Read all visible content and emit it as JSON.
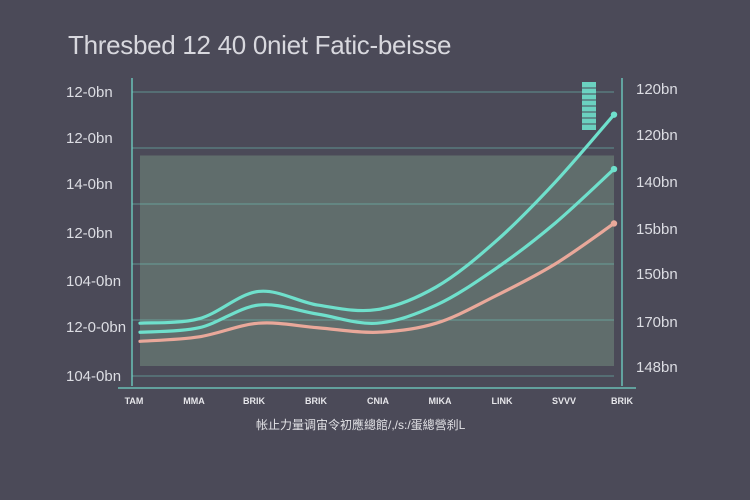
{
  "title": "Thresbed 12 40 0niet Fatic-beisse",
  "caption": "帐止力量调宙令初應總館/,/s:/蛋總營刹L",
  "colors": {
    "background": "#4b4a58",
    "band": "#63716f",
    "grid": "#6fc8bd",
    "axis": "#6fd3c6",
    "series_top": "#6fe0cc",
    "series_mid": "#6fe0cc",
    "series_bottom": "#e9a89a"
  },
  "chart_data": {
    "type": "line",
    "title": "Thresbed 12 40 0niet Fatic-beisse",
    "y_left_ticks": [
      "12-0bn",
      "12-0bn",
      "14-0bn",
      "12-0bn",
      "104-0bn",
      "12-0-0bn",
      "104-0bn"
    ],
    "y_right_ticks": [
      "120bn",
      "120bn",
      "140bn",
      "15bbn",
      "150bn",
      "170bn",
      "148bn"
    ],
    "x_tick_labels": [
      "TAM",
      "MMA",
      "BRIK",
      "BRIK",
      "CNIA",
      "MIKA",
      "LINK",
      "SVVV",
      "BRIK"
    ],
    "x": [
      0,
      1,
      2,
      3,
      4,
      5,
      6,
      7,
      8
    ],
    "ylim": [
      0,
      6
    ],
    "series": [
      {
        "values": [
          0.9,
          1.0,
          1.6,
          1.3,
          1.2,
          1.7,
          2.7,
          4.0,
          5.5
        ]
      },
      {
        "values": [
          0.7,
          0.8,
          1.3,
          1.1,
          0.9,
          1.3,
          2.1,
          3.1,
          4.3
        ]
      },
      {
        "values": [
          0.5,
          0.6,
          0.9,
          0.8,
          0.7,
          0.9,
          1.5,
          2.2,
          3.1
        ]
      }
    ],
    "band_range": [
      0.3,
      4.6
    ],
    "grid": true,
    "legend": "none"
  }
}
